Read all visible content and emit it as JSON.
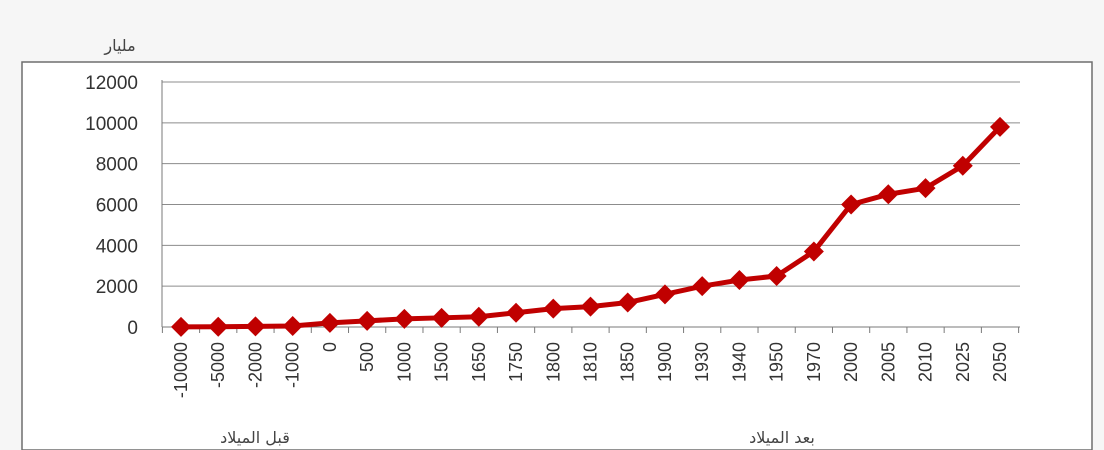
{
  "chart_data": {
    "type": "line",
    "title": "",
    "ylabel": "مليار",
    "xlabel": "",
    "era_labels": {
      "before": "قبل الميلاد",
      "after": "بعد الميلاد"
    },
    "categories": [
      "-10000",
      "-5000",
      "-2000",
      "-1000",
      "0",
      "500",
      "1000",
      "1500",
      "1650",
      "1750",
      "1800",
      "1810",
      "1850",
      "1900",
      "1930",
      "1940",
      "1950",
      "1970",
      "2000",
      "2005",
      "2010",
      "2025",
      "2050"
    ],
    "series": [
      {
        "values": [
          5,
          10,
          30,
          50,
          200,
          300,
          400,
          450,
          500,
          700,
          900,
          1000,
          1200,
          1600,
          2000,
          2300,
          2500,
          3700,
          6000,
          6500,
          6800,
          7900,
          9800
        ],
        "color": "#c00000"
      }
    ],
    "yticks": [
      "0",
      "2000",
      "4000",
      "6000",
      "8000",
      "10000",
      "12000"
    ],
    "ylim": [
      0,
      12000
    ],
    "grid": true,
    "legend": "none"
  }
}
